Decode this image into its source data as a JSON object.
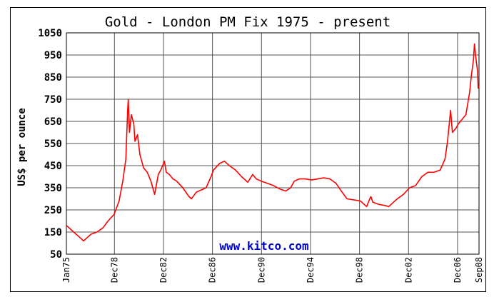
{
  "chart_data": {
    "type": "line",
    "title": "Gold - London PM Fix 1975 - present",
    "ylabel": "US$ per ounce",
    "xlabel": "",
    "watermark": "www.kitco.com",
    "ylim": [
      50,
      1050
    ],
    "xlim": [
      1975.0,
      2008.67
    ],
    "yticks": [
      {
        "value": 1050,
        "label": "1050"
      },
      {
        "value": 950,
        "label": "950"
      },
      {
        "value": 850,
        "label": "850"
      },
      {
        "value": 750,
        "label": "750"
      },
      {
        "value": 650,
        "label": "650"
      },
      {
        "value": 550,
        "label": "550"
      },
      {
        "value": 450,
        "label": "450"
      },
      {
        "value": 350,
        "label": "350"
      },
      {
        "value": 250,
        "label": "250"
      },
      {
        "value": 150,
        "label": "150"
      },
      {
        "value": 50,
        "label": "50"
      }
    ],
    "xticks": [
      {
        "value": 1975.0,
        "label": "Jan75"
      },
      {
        "value": 1978.92,
        "label": "Dec78"
      },
      {
        "value": 1982.92,
        "label": "Dec82"
      },
      {
        "value": 1986.92,
        "label": "Dec86"
      },
      {
        "value": 1990.92,
        "label": "Dec90"
      },
      {
        "value": 1994.92,
        "label": "Dec94"
      },
      {
        "value": 1998.92,
        "label": "Dec98"
      },
      {
        "value": 2002.92,
        "label": "Dec02"
      },
      {
        "value": 2006.92,
        "label": "Dec06"
      },
      {
        "value": 2008.67,
        "label": "Sep08"
      }
    ],
    "grid": true,
    "colors": {
      "line": "#ff0000",
      "grid": "#555555",
      "background": "#ffffff",
      "watermark": "#0000cc"
    },
    "series": [
      {
        "x": [
          1975.0,
          1975.3,
          1975.7,
          1976.0,
          1976.4,
          1976.7,
          1977.0,
          1977.5,
          1978.0,
          1978.4,
          1978.9,
          1979.3,
          1979.6,
          1979.85,
          1980.0,
          1980.05,
          1980.15,
          1980.3,
          1980.5,
          1980.6,
          1980.8,
          1981.0,
          1981.3,
          1981.6,
          1981.9,
          1982.2,
          1982.5,
          1982.7,
          1983.0,
          1983.15,
          1983.4,
          1983.7,
          1984.0,
          1984.5,
          1985.0,
          1985.2,
          1985.6,
          1986.0,
          1986.4,
          1986.8,
          1987.0,
          1987.5,
          1987.9,
          1988.3,
          1988.8,
          1989.3,
          1989.8,
          1990.2,
          1990.5,
          1990.9,
          1991.4,
          1991.9,
          1992.4,
          1992.9,
          1993.3,
          1993.6,
          1994.0,
          1994.5,
          1995.0,
          1995.5,
          1996.0,
          1996.5,
          1997.0,
          1997.5,
          1997.9,
          1998.5,
          1999.0,
          1999.5,
          1999.75,
          1999.85,
          2000.0,
          2000.5,
          2001.0,
          2001.3,
          2001.6,
          2002.0,
          2002.5,
          2003.0,
          2003.5,
          2004.0,
          2004.5,
          2005.0,
          2005.5,
          2005.9,
          2006.1,
          2006.35,
          2006.5,
          2006.8,
          2007.0,
          2007.3,
          2007.6,
          2007.9,
          2008.05,
          2008.15,
          2008.22,
          2008.3,
          2008.45,
          2008.55,
          2008.6,
          2008.67
        ],
        "y": [
          180,
          165,
          145,
          130,
          110,
          125,
          140,
          150,
          170,
          200,
          230,
          290,
          380,
          480,
          700,
          750,
          600,
          680,
          640,
          560,
          590,
          500,
          440,
          420,
          380,
          320,
          410,
          430,
          470,
          420,
          410,
          390,
          380,
          350,
          310,
          300,
          330,
          340,
          350,
          400,
          430,
          460,
          470,
          450,
          430,
          400,
          375,
          410,
          390,
          380,
          370,
          360,
          345,
          335,
          350,
          380,
          390,
          390,
          385,
          390,
          395,
          390,
          370,
          330,
          300,
          295,
          290,
          265,
          300,
          310,
          285,
          275,
          270,
          265,
          280,
          300,
          320,
          350,
          360,
          400,
          420,
          420,
          430,
          480,
          560,
          700,
          600,
          620,
          640,
          660,
          680,
          780,
          860,
          900,
          930,
          1000,
          920,
          880,
          800,
          810
        ]
      }
    ]
  }
}
